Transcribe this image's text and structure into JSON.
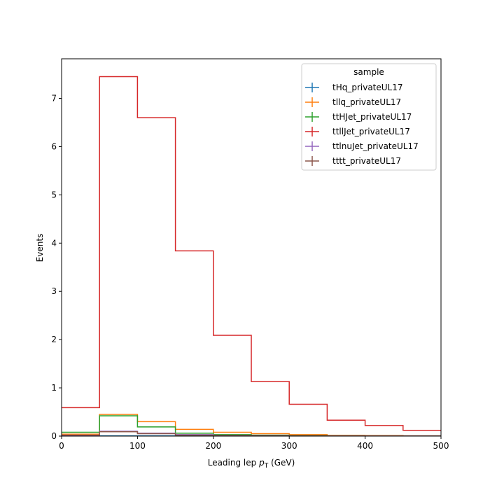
{
  "chart_data": {
    "type": "step-histogram",
    "xlabel_prefix": "Leading lep ",
    "xlabel_var": "p",
    "xlabel_sub": "T",
    "xlabel_suffix": " (GeV)",
    "ylabel": "Events",
    "xlim": [
      0,
      500
    ],
    "ylim": [
      0,
      7.82
    ],
    "xticks": [
      0,
      100,
      200,
      300,
      400,
      500
    ],
    "yticks": [
      0,
      1,
      2,
      3,
      4,
      5,
      6,
      7
    ],
    "grid": false,
    "legend": {
      "title": "sample",
      "placement": "top-right"
    },
    "bin_edges": [
      0,
      50,
      100,
      150,
      200,
      250,
      300,
      350,
      400,
      450,
      500
    ],
    "series": [
      {
        "name": "tHq_privateUL17",
        "color": "#1f77b4",
        "values": [
          0.003,
          0.006,
          0.005,
          0.004,
          0.003,
          0.002,
          0.001,
          0.001,
          0.001,
          0.0005
        ]
      },
      {
        "name": "tllq_privateUL17",
        "color": "#ff7f0e",
        "values": [
          0.04,
          0.45,
          0.3,
          0.14,
          0.08,
          0.05,
          0.03,
          0.015,
          0.01,
          0.005
        ]
      },
      {
        "name": "ttHJet_privateUL17",
        "color": "#2ca02c",
        "values": [
          0.08,
          0.42,
          0.19,
          0.06,
          0.03,
          0.02,
          0.01,
          0.005,
          0.003,
          0.002
        ]
      },
      {
        "name": "ttllJet_privateUL17",
        "color": "#d62728",
        "values": [
          0.59,
          7.45,
          6.6,
          3.84,
          2.09,
          1.13,
          0.66,
          0.33,
          0.22,
          0.12
        ]
      },
      {
        "name": "ttlnuJet_privateUL17",
        "color": "#9467bd",
        "values": [
          0.02,
          0.1,
          0.06,
          0.03,
          0.015,
          0.01,
          0.005,
          0.003,
          0.002,
          0.001
        ]
      },
      {
        "name": "tttt_privateUL17",
        "color": "#8c564b",
        "values": [
          0.01,
          0.09,
          0.05,
          0.02,
          0.01,
          0.005,
          0.003,
          0.002,
          0.001,
          0.001
        ]
      }
    ]
  }
}
